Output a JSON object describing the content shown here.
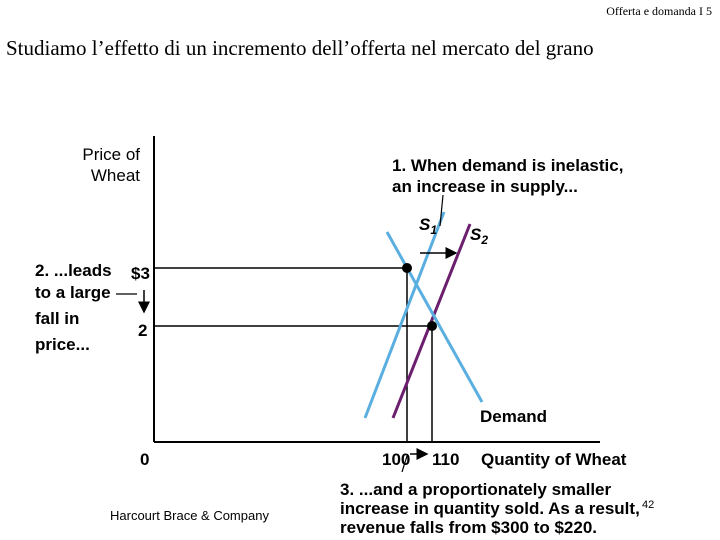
{
  "header": {
    "slide_label": "Offerta e domanda I 5"
  },
  "title": "Studiamo l’effetto di un incremento dell’offerta nel mercato del grano",
  "footer": {
    "publisher": "Harcourt Brace & Company"
  },
  "page_number": "42",
  "diagram": {
    "y_axis_label": [
      "Price of",
      "Wheat"
    ],
    "x_axis_label": "Quantity of Wheat",
    "origin_label": "0",
    "price_ticks": [
      "$3",
      "2"
    ],
    "quantity_ticks": [
      "100",
      "110"
    ],
    "curves": {
      "supply_1": {
        "label": "S",
        "sub": "1",
        "color": "#5aaee0"
      },
      "supply_2": {
        "label": "S",
        "sub": "2",
        "color": "#6b1f6e"
      },
      "demand": {
        "label": "Demand",
        "color": "#5aaee0"
      }
    },
    "annotations": {
      "step1": [
        "1. When demand is inelastic,",
        "an increase in supply..."
      ],
      "step2": [
        "2. ...leads",
        "to a large",
        "fall in",
        "price..."
      ],
      "step3": [
        "3. ...and a proportionately smaller",
        "increase in quantity sold.  As a result,",
        "revenue falls from $300 to $220."
      ]
    }
  }
}
